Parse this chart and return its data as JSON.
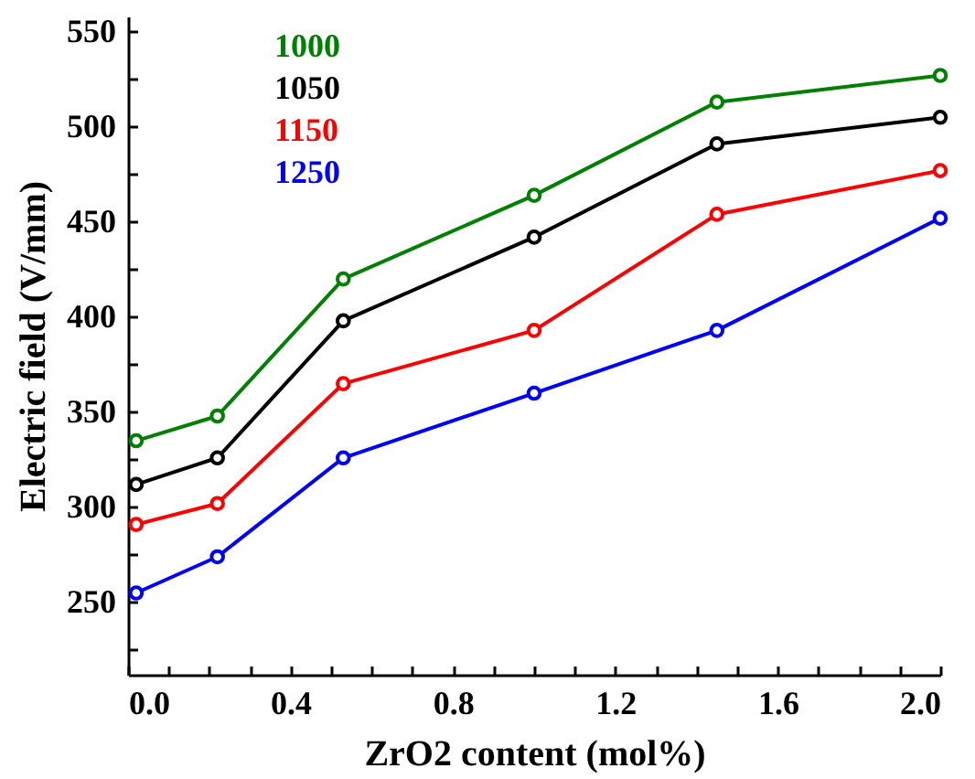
{
  "chart_data": {
    "type": "line",
    "xlabel": "ZrO2 content  (mol%)",
    "ylabel": "Electric field (V/mm)",
    "x": [
      0.02,
      0.22,
      0.53,
      1.0,
      1.45,
      2.0
    ],
    "series": [
      {
        "name": "1000",
        "color": "#008000",
        "values": [
          335,
          348,
          420,
          464,
          513,
          527
        ]
      },
      {
        "name": "1050",
        "color": "#000000",
        "values": [
          312,
          326,
          398,
          442,
          491,
          505
        ]
      },
      {
        "name": "1150",
        "color": "#ff0000",
        "values": [
          291,
          302,
          365,
          393,
          454,
          477
        ]
      },
      {
        "name": "1250",
        "color": "#0000ff",
        "values": [
          255,
          274,
          326,
          360,
          393,
          452
        ]
      }
    ],
    "xlim": [
      0,
      2
    ],
    "xticks": [
      {
        "value": 0,
        "label": "0.0"
      },
      {
        "value": 0.1,
        "label": null
      },
      {
        "value": 0.2,
        "label": null
      },
      {
        "value": 0.3,
        "label": null
      },
      {
        "value": 0.4,
        "label": "0.4"
      },
      {
        "value": 0.5,
        "label": null
      },
      {
        "value": 0.6,
        "label": null
      },
      {
        "value": 0.7,
        "label": null
      },
      {
        "value": 0.8,
        "label": "0.8"
      },
      {
        "value": 0.9,
        "label": null
      },
      {
        "value": 1.0,
        "label": null
      },
      {
        "value": 1.1,
        "label": null
      },
      {
        "value": 1.2,
        "label": "1.2"
      },
      {
        "value": 1.3,
        "label": null
      },
      {
        "value": 1.4,
        "label": null
      },
      {
        "value": 1.5,
        "label": null
      },
      {
        "value": 1.6,
        "label": "1.6"
      },
      {
        "value": 1.7,
        "label": null
      },
      {
        "value": 1.8,
        "label": null
      },
      {
        "value": 1.9,
        "label": null
      },
      {
        "value": 2.0,
        "label": "2.0"
      }
    ],
    "ylim": [
      212,
      558
    ],
    "yticks": [
      {
        "value": 225,
        "label": null
      },
      250,
      {
        "value": 275,
        "label": null
      },
      300,
      {
        "value": 325,
        "label": null
      },
      350,
      {
        "value": 375,
        "label": null
      },
      400,
      {
        "value": 425,
        "label": null
      },
      450,
      {
        "value": 475,
        "label": null
      },
      500,
      {
        "value": 525,
        "label": null
      },
      550
    ],
    "grid": false,
    "legend": "top left",
    "marker": "circle",
    "line_style": "solid"
  }
}
